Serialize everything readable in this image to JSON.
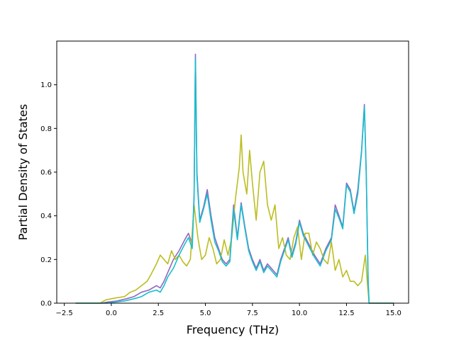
{
  "chart_data": {
    "type": "line",
    "xlabel": "Frequency (THz)",
    "ylabel": "Partial Density of States",
    "xlim": [
      -2.9,
      15.8
    ],
    "ylim": [
      0,
      1.2
    ],
    "x_ticks": [
      -2.5,
      0.0,
      2.5,
      5.0,
      7.5,
      10.0,
      12.5,
      15.0
    ],
    "x_tick_labels": [
      "−2.5",
      "0.0",
      "2.5",
      "5.0",
      "7.5",
      "10.0",
      "12.5",
      "15.0"
    ],
    "y_ticks": [
      0.0,
      0.2,
      0.4,
      0.6,
      0.8,
      1.0
    ],
    "y_tick_labels": [
      "0.0",
      "0.2",
      "0.4",
      "0.6",
      "0.8",
      "1.0"
    ],
    "grid": false,
    "series": [
      {
        "color": "#9467bd",
        "points": [
          [
            -1.9,
            0
          ],
          [
            -0.5,
            0
          ],
          [
            -0.2,
            0.005
          ],
          [
            0.3,
            0.01
          ],
          [
            0.8,
            0.02
          ],
          [
            1.2,
            0.03
          ],
          [
            1.6,
            0.05
          ],
          [
            2.0,
            0.06
          ],
          [
            2.4,
            0.08
          ],
          [
            2.6,
            0.07
          ],
          [
            2.8,
            0.1
          ],
          [
            3.0,
            0.14
          ],
          [
            3.3,
            0.2
          ],
          [
            3.6,
            0.24
          ],
          [
            3.9,
            0.29
          ],
          [
            4.1,
            0.32
          ],
          [
            4.3,
            0.27
          ],
          [
            4.4,
            0.5
          ],
          [
            4.47,
            1.14
          ],
          [
            4.55,
            0.6
          ],
          [
            4.7,
            0.38
          ],
          [
            4.9,
            0.44
          ],
          [
            5.1,
            0.52
          ],
          [
            5.3,
            0.4
          ],
          [
            5.5,
            0.3
          ],
          [
            5.7,
            0.25
          ],
          [
            5.9,
            0.2
          ],
          [
            6.1,
            0.18
          ],
          [
            6.3,
            0.2
          ],
          [
            6.5,
            0.45
          ],
          [
            6.7,
            0.3
          ],
          [
            6.9,
            0.46
          ],
          [
            7.1,
            0.35
          ],
          [
            7.3,
            0.25
          ],
          [
            7.5,
            0.2
          ],
          [
            7.7,
            0.16
          ],
          [
            7.9,
            0.2
          ],
          [
            8.1,
            0.15
          ],
          [
            8.3,
            0.18
          ],
          [
            8.5,
            0.16
          ],
          [
            8.8,
            0.13
          ],
          [
            9.0,
            0.2
          ],
          [
            9.2,
            0.25
          ],
          [
            9.4,
            0.3
          ],
          [
            9.6,
            0.22
          ],
          [
            9.8,
            0.28
          ],
          [
            10.0,
            0.38
          ],
          [
            10.2,
            0.32
          ],
          [
            10.5,
            0.27
          ],
          [
            10.8,
            0.22
          ],
          [
            11.1,
            0.18
          ],
          [
            11.4,
            0.25
          ],
          [
            11.7,
            0.3
          ],
          [
            11.9,
            0.45
          ],
          [
            12.1,
            0.4
          ],
          [
            12.3,
            0.35
          ],
          [
            12.5,
            0.55
          ],
          [
            12.7,
            0.52
          ],
          [
            12.9,
            0.42
          ],
          [
            13.1,
            0.52
          ],
          [
            13.3,
            0.7
          ],
          [
            13.45,
            0.91
          ],
          [
            13.55,
            0.6
          ],
          [
            13.65,
            0.1
          ],
          [
            13.7,
            0
          ],
          [
            15.0,
            0
          ]
        ]
      },
      {
        "color": "#bcbd22",
        "points": [
          [
            -1.9,
            0
          ],
          [
            -0.6,
            0
          ],
          [
            -0.3,
            0.015
          ],
          [
            0.0,
            0.02
          ],
          [
            0.3,
            0.025
          ],
          [
            0.7,
            0.03
          ],
          [
            1.0,
            0.05
          ],
          [
            1.3,
            0.06
          ],
          [
            1.6,
            0.08
          ],
          [
            1.9,
            0.1
          ],
          [
            2.1,
            0.13
          ],
          [
            2.4,
            0.18
          ],
          [
            2.6,
            0.22
          ],
          [
            2.8,
            0.2
          ],
          [
            3.0,
            0.18
          ],
          [
            3.2,
            0.24
          ],
          [
            3.4,
            0.2
          ],
          [
            3.6,
            0.22
          ],
          [
            3.8,
            0.19
          ],
          [
            4.0,
            0.17
          ],
          [
            4.2,
            0.2
          ],
          [
            4.4,
            0.45
          ],
          [
            4.6,
            0.3
          ],
          [
            4.8,
            0.2
          ],
          [
            5.0,
            0.22
          ],
          [
            5.2,
            0.3
          ],
          [
            5.4,
            0.25
          ],
          [
            5.6,
            0.18
          ],
          [
            5.8,
            0.2
          ],
          [
            6.0,
            0.29
          ],
          [
            6.2,
            0.22
          ],
          [
            6.4,
            0.3
          ],
          [
            6.6,
            0.48
          ],
          [
            6.8,
            0.62
          ],
          [
            6.9,
            0.77
          ],
          [
            7.0,
            0.6
          ],
          [
            7.2,
            0.5
          ],
          [
            7.35,
            0.7
          ],
          [
            7.5,
            0.55
          ],
          [
            7.7,
            0.38
          ],
          [
            7.9,
            0.6
          ],
          [
            8.1,
            0.65
          ],
          [
            8.3,
            0.45
          ],
          [
            8.5,
            0.38
          ],
          [
            8.7,
            0.45
          ],
          [
            8.9,
            0.25
          ],
          [
            9.1,
            0.3
          ],
          [
            9.3,
            0.22
          ],
          [
            9.5,
            0.2
          ],
          [
            9.7,
            0.3
          ],
          [
            9.9,
            0.35
          ],
          [
            10.1,
            0.2
          ],
          [
            10.3,
            0.32
          ],
          [
            10.5,
            0.32
          ],
          [
            10.7,
            0.22
          ],
          [
            10.9,
            0.28
          ],
          [
            11.1,
            0.25
          ],
          [
            11.3,
            0.2
          ],
          [
            11.5,
            0.18
          ],
          [
            11.7,
            0.28
          ],
          [
            11.9,
            0.15
          ],
          [
            12.1,
            0.2
          ],
          [
            12.3,
            0.12
          ],
          [
            12.5,
            0.15
          ],
          [
            12.7,
            0.1
          ],
          [
            12.9,
            0.1
          ],
          [
            13.1,
            0.08
          ],
          [
            13.3,
            0.1
          ],
          [
            13.5,
            0.22
          ],
          [
            13.6,
            0.1
          ],
          [
            13.7,
            0
          ],
          [
            15.0,
            0
          ]
        ]
      },
      {
        "color": "#17becf",
        "points": [
          [
            -1.9,
            0
          ],
          [
            -0.2,
            0
          ],
          [
            0.2,
            0.005
          ],
          [
            0.7,
            0.01
          ],
          [
            1.2,
            0.02
          ],
          [
            1.6,
            0.03
          ],
          [
            2.0,
            0.05
          ],
          [
            2.4,
            0.06
          ],
          [
            2.6,
            0.05
          ],
          [
            2.8,
            0.08
          ],
          [
            3.0,
            0.12
          ],
          [
            3.3,
            0.16
          ],
          [
            3.6,
            0.22
          ],
          [
            3.9,
            0.27
          ],
          [
            4.1,
            0.3
          ],
          [
            4.3,
            0.25
          ],
          [
            4.4,
            0.48
          ],
          [
            4.47,
            1.12
          ],
          [
            4.55,
            0.58
          ],
          [
            4.7,
            0.37
          ],
          [
            4.9,
            0.43
          ],
          [
            5.1,
            0.5
          ],
          [
            5.3,
            0.38
          ],
          [
            5.5,
            0.28
          ],
          [
            5.7,
            0.24
          ],
          [
            5.9,
            0.19
          ],
          [
            6.1,
            0.17
          ],
          [
            6.3,
            0.19
          ],
          [
            6.5,
            0.43
          ],
          [
            6.7,
            0.29
          ],
          [
            6.9,
            0.45
          ],
          [
            7.1,
            0.34
          ],
          [
            7.3,
            0.24
          ],
          [
            7.5,
            0.19
          ],
          [
            7.7,
            0.15
          ],
          [
            7.9,
            0.19
          ],
          [
            8.1,
            0.14
          ],
          [
            8.3,
            0.17
          ],
          [
            8.5,
            0.15
          ],
          [
            8.8,
            0.12
          ],
          [
            9.0,
            0.19
          ],
          [
            9.2,
            0.24
          ],
          [
            9.4,
            0.29
          ],
          [
            9.6,
            0.21
          ],
          [
            9.8,
            0.27
          ],
          [
            10.0,
            0.37
          ],
          [
            10.2,
            0.31
          ],
          [
            10.5,
            0.26
          ],
          [
            10.8,
            0.21
          ],
          [
            11.1,
            0.17
          ],
          [
            11.4,
            0.24
          ],
          [
            11.7,
            0.29
          ],
          [
            11.9,
            0.43
          ],
          [
            12.1,
            0.39
          ],
          [
            12.3,
            0.34
          ],
          [
            12.5,
            0.54
          ],
          [
            12.7,
            0.51
          ],
          [
            12.9,
            0.41
          ],
          [
            13.1,
            0.5
          ],
          [
            13.3,
            0.69
          ],
          [
            13.45,
            0.9
          ],
          [
            13.55,
            0.58
          ],
          [
            13.65,
            0.1
          ],
          [
            13.7,
            0
          ],
          [
            15.0,
            0
          ]
        ]
      }
    ]
  }
}
